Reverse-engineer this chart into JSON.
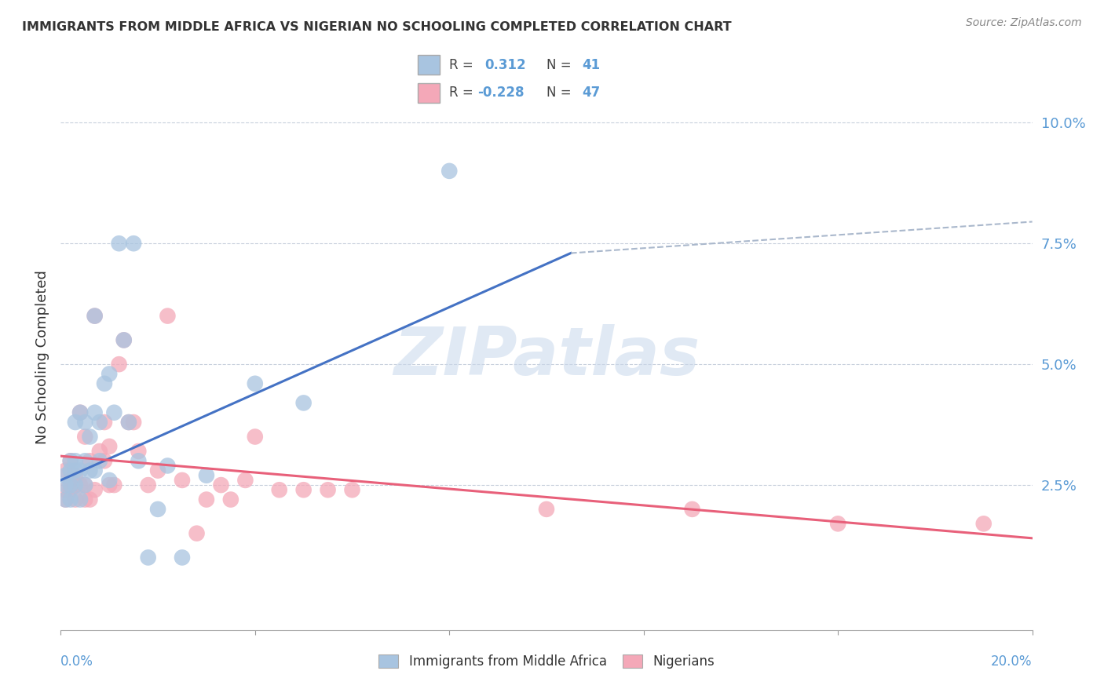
{
  "title": "IMMIGRANTS FROM MIDDLE AFRICA VS NIGERIAN NO SCHOOLING COMPLETED CORRELATION CHART",
  "source": "Source: ZipAtlas.com",
  "ylabel": "No Schooling Completed",
  "ytick_labels": [
    "2.5%",
    "5.0%",
    "7.5%",
    "10.0%"
  ],
  "ytick_values": [
    0.025,
    0.05,
    0.075,
    0.1
  ],
  "xlim": [
    0.0,
    0.2
  ],
  "ylim": [
    -0.005,
    0.108
  ],
  "blue_color": "#a8c4e0",
  "pink_color": "#f4a8b8",
  "blue_line_color": "#4472c4",
  "pink_line_color": "#e8607a",
  "dashed_line_color": "#aab8cc",
  "watermark": "ZIPatlas",
  "blue_scatter_x": [
    0.001,
    0.001,
    0.001,
    0.002,
    0.002,
    0.002,
    0.002,
    0.003,
    0.003,
    0.003,
    0.003,
    0.004,
    0.004,
    0.004,
    0.005,
    0.005,
    0.005,
    0.006,
    0.006,
    0.007,
    0.007,
    0.007,
    0.008,
    0.008,
    0.009,
    0.01,
    0.01,
    0.011,
    0.012,
    0.013,
    0.014,
    0.015,
    0.016,
    0.018,
    0.02,
    0.022,
    0.025,
    0.03,
    0.04,
    0.05,
    0.08
  ],
  "blue_scatter_y": [
    0.022,
    0.025,
    0.027,
    0.022,
    0.025,
    0.028,
    0.03,
    0.025,
    0.028,
    0.03,
    0.038,
    0.022,
    0.028,
    0.04,
    0.025,
    0.03,
    0.038,
    0.028,
    0.035,
    0.028,
    0.04,
    0.06,
    0.03,
    0.038,
    0.046,
    0.026,
    0.048,
    0.04,
    0.075,
    0.055,
    0.038,
    0.075,
    0.03,
    0.01,
    0.02,
    0.029,
    0.01,
    0.027,
    0.046,
    0.042,
    0.09
  ],
  "pink_scatter_x": [
    0.001,
    0.001,
    0.001,
    0.002,
    0.002,
    0.002,
    0.003,
    0.003,
    0.003,
    0.004,
    0.004,
    0.005,
    0.005,
    0.005,
    0.006,
    0.006,
    0.007,
    0.007,
    0.008,
    0.009,
    0.009,
    0.01,
    0.01,
    0.011,
    0.012,
    0.013,
    0.014,
    0.015,
    0.016,
    0.018,
    0.02,
    0.022,
    0.025,
    0.028,
    0.03,
    0.033,
    0.035,
    0.038,
    0.04,
    0.045,
    0.05,
    0.055,
    0.06,
    0.1,
    0.13,
    0.16,
    0.19
  ],
  "pink_scatter_y": [
    0.022,
    0.024,
    0.028,
    0.024,
    0.026,
    0.03,
    0.022,
    0.025,
    0.027,
    0.025,
    0.04,
    0.022,
    0.025,
    0.035,
    0.022,
    0.03,
    0.024,
    0.06,
    0.032,
    0.03,
    0.038,
    0.025,
    0.033,
    0.025,
    0.05,
    0.055,
    0.038,
    0.038,
    0.032,
    0.025,
    0.028,
    0.06,
    0.026,
    0.015,
    0.022,
    0.025,
    0.022,
    0.026,
    0.035,
    0.024,
    0.024,
    0.024,
    0.024,
    0.02,
    0.02,
    0.017,
    0.017
  ],
  "blue_line_x": [
    0.0,
    0.105
  ],
  "blue_line_y": [
    0.026,
    0.073
  ],
  "dashed_line_x": [
    0.105,
    0.2
  ],
  "dashed_line_y": [
    0.073,
    0.0795
  ],
  "pink_line_x": [
    0.0,
    0.2
  ],
  "pink_line_y": [
    0.031,
    0.014
  ]
}
